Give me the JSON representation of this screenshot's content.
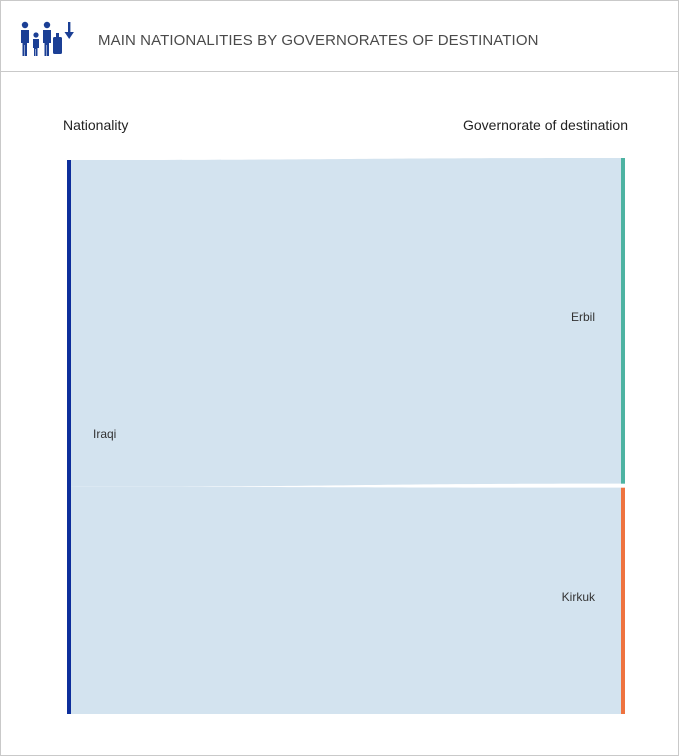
{
  "header": {
    "title": "MAIN NATIONALITIES BY GOVERNORATES OF DESTINATION",
    "icon": "family-travel-icon"
  },
  "columns": {
    "left": "Nationality",
    "right": "Governorate of destination"
  },
  "colors": {
    "source_bar": "#0d2e9b",
    "link": "#d3e3ef",
    "erbil": "#4db3a2",
    "kirkuk": "#ee7340",
    "icon": "#1b3f95"
  },
  "chart_data": {
    "type": "sankey",
    "sources": [
      "Iraqi"
    ],
    "targets": [
      "Erbil",
      "Kirkuk"
    ],
    "flows": [
      {
        "source": "Iraqi",
        "target": "Erbil",
        "value": 59
      },
      {
        "source": "Iraqi",
        "target": "Kirkuk",
        "value": 41
      }
    ]
  }
}
